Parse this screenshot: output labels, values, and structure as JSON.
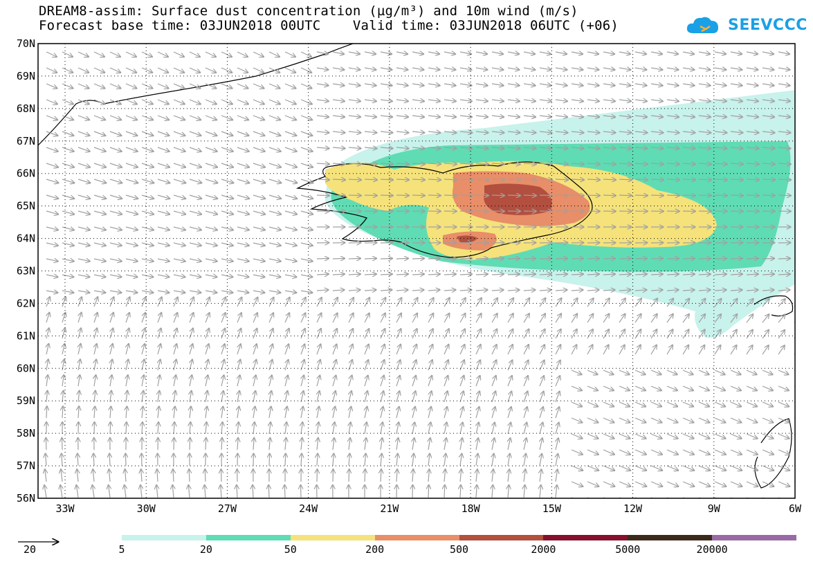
{
  "header": {
    "title_line1": "DREAM8-assim: Surface dust concentration (µg/m³) and 10m wind (m/s)",
    "title_line2": "Forecast base time: 03JUN2018 00UTC    Valid time: 03JUN2018 06UTC (+06)"
  },
  "logo": {
    "text": "SEEVCCC",
    "color": "#1aa0e6"
  },
  "map": {
    "lat_labels": [
      "70N",
      "69N",
      "68N",
      "67N",
      "66N",
      "65N",
      "64N",
      "63N",
      "62N",
      "61N",
      "60N",
      "59N",
      "58N",
      "57N",
      "56N"
    ],
    "lon_labels": [
      "33W",
      "30W",
      "27W",
      "24W",
      "21W",
      "18W",
      "15W",
      "12W",
      "9W",
      "6W"
    ],
    "wind_arrow_color": "#a0a0a0",
    "coast_color": "#000000"
  },
  "legend": {
    "reference_vector_label": "20",
    "colors": [
      "#c8f2ec",
      "#5fdcb3",
      "#f5e27a",
      "#e88e68",
      "#b34f3f",
      "#84102c",
      "#3b2a1b",
      "#9a6aa5"
    ],
    "labels": [
      "5",
      "20",
      "50",
      "200",
      "500",
      "2000",
      "5000",
      "20000"
    ]
  }
}
